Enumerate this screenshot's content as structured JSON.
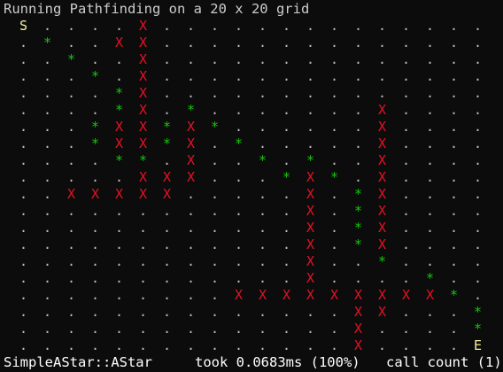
{
  "window": {
    "title": "Running Pathfinding on a 20 x 20 grid"
  },
  "grid": {
    "size": 20,
    "colors": {
      "empty": "#c0c0c0",
      "wall": "#e81123",
      "path": "#16c60c",
      "start": "#f9f1a5",
      "end": "#f9f1a5"
    },
    "legend": {
      "empty": ".",
      "wall": "X",
      "path": "*",
      "start": "S",
      "end": "E"
    },
    "rows": [
      "S....X..............",
      ".*..XX..............",
      "..*..X..............",
      "...*.X..............",
      "....*X..............",
      "....*X.*.......X....",
      "...*XX*X*......X....",
      "...*XX*X.*.....X....",
      "....**.X..*.*..X....",
      ".....XXX...*X*.X....",
      "..XXXXX.....X.*X....",
      "............X.*X....",
      "............X.*X....",
      "............X.*X....",
      "............X..*....",
      "............X....*..",
      ".........XXXXXXXXX*.",
      "..............XX...*",
      "..............X....*",
      "..............X....E"
    ]
  },
  "footer": {
    "algorithm": "SimpleAStar::AStar",
    "timing": "took 0.0683ms (100%)",
    "calls": "call count (1)"
  }
}
